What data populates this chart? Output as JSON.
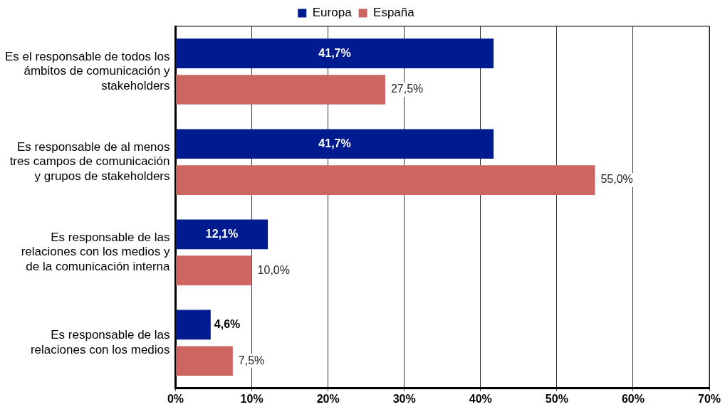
{
  "chart_data": {
    "type": "bar",
    "orientation": "horizontal",
    "categories": [
      "Es el responsable de todos los ámbitos de comunicación y stakeholders",
      "Es responsable de al menos tres campos de comunicación y grupos de stakeholders",
      "Es responsable de las relaciones con los medios y de la comunicación interna",
      "Es responsable de las relaciones con los medios"
    ],
    "series": [
      {
        "name": "Europa",
        "color": "#001a8f",
        "values": [
          41.7,
          41.7,
          12.1,
          4.6
        ],
        "value_labels": [
          "41,7%",
          "41,7%",
          "12,1%",
          "4,6%"
        ]
      },
      {
        "name": "España",
        "color": "#cd6560",
        "values": [
          27.5,
          55.0,
          10.0,
          7.5
        ],
        "value_labels": [
          "27,5%",
          "55,0%",
          "10,0%",
          "7,5%"
        ]
      }
    ],
    "xlim": [
      0,
      70
    ],
    "xticks": [
      {
        "value": 0,
        "label": "0%"
      },
      {
        "value": 10,
        "label": "10%"
      },
      {
        "value": 20,
        "label": "20%"
      },
      {
        "value": 30,
        "label": "30%"
      },
      {
        "value": 40,
        "label": "40%"
      },
      {
        "value": 50,
        "label": "50%"
      },
      {
        "value": 60,
        "label": "60%"
      },
      {
        "value": 70,
        "label": "70%"
      }
    ],
    "grid": "x",
    "legend": "top"
  }
}
